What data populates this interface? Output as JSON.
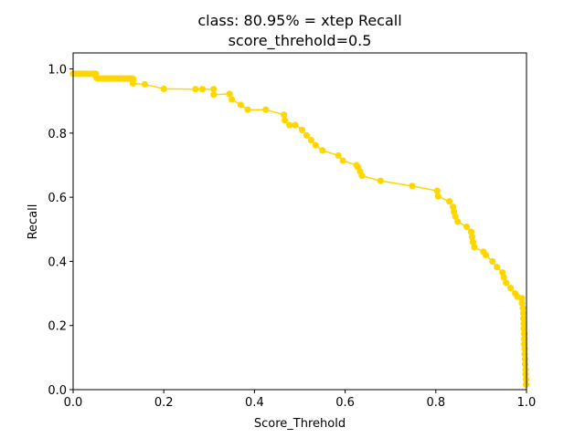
{
  "chart_data": {
    "type": "line",
    "title_line1": "class: 80.95% = xtep Recall",
    "title_line2": "score_threhold=0.5",
    "xlabel": "Score_Threhold",
    "ylabel": "Recall",
    "xlim": [
      0.0,
      1.0
    ],
    "ylim": [
      0.0,
      1.05
    ],
    "x_ticks": [
      "0.0",
      "0.2",
      "0.4",
      "0.6",
      "0.8",
      "1.0"
    ],
    "y_ticks": [
      "0.0",
      "0.2",
      "0.4",
      "0.6",
      "0.8",
      "1.0"
    ],
    "grid": false,
    "series": [
      {
        "color": "#FFD700",
        "marker": "circle",
        "points": [
          [
            0.0,
            0.985
          ],
          [
            0.005,
            0.985
          ],
          [
            0.01,
            0.985
          ],
          [
            0.015,
            0.985
          ],
          [
            0.02,
            0.985
          ],
          [
            0.025,
            0.985
          ],
          [
            0.03,
            0.985
          ],
          [
            0.035,
            0.985
          ],
          [
            0.04,
            0.985
          ],
          [
            0.045,
            0.985
          ],
          [
            0.05,
            0.985
          ],
          [
            0.05,
            0.978
          ],
          [
            0.052,
            0.972
          ],
          [
            0.056,
            0.97
          ],
          [
            0.06,
            0.97
          ],
          [
            0.065,
            0.97
          ],
          [
            0.07,
            0.97
          ],
          [
            0.075,
            0.97
          ],
          [
            0.08,
            0.97
          ],
          [
            0.085,
            0.97
          ],
          [
            0.09,
            0.97
          ],
          [
            0.095,
            0.97
          ],
          [
            0.1,
            0.97
          ],
          [
            0.105,
            0.97
          ],
          [
            0.11,
            0.97
          ],
          [
            0.115,
            0.97
          ],
          [
            0.12,
            0.97
          ],
          [
            0.125,
            0.97
          ],
          [
            0.13,
            0.97
          ],
          [
            0.133,
            0.968
          ],
          [
            0.132,
            0.955
          ],
          [
            0.158,
            0.952
          ],
          [
            0.2,
            0.938
          ],
          [
            0.27,
            0.937
          ],
          [
            0.285,
            0.937
          ],
          [
            0.31,
            0.937
          ],
          [
            0.31,
            0.92
          ],
          [
            0.345,
            0.922
          ],
          [
            0.35,
            0.905
          ],
          [
            0.37,
            0.888
          ],
          [
            0.385,
            0.873
          ],
          [
            0.425,
            0.873
          ],
          [
            0.465,
            0.857
          ],
          [
            0.467,
            0.84
          ],
          [
            0.477,
            0.825
          ],
          [
            0.49,
            0.825
          ],
          [
            0.505,
            0.81
          ],
          [
            0.515,
            0.793
          ],
          [
            0.525,
            0.778
          ],
          [
            0.535,
            0.762
          ],
          [
            0.55,
            0.746
          ],
          [
            0.585,
            0.73
          ],
          [
            0.595,
            0.714
          ],
          [
            0.625,
            0.7
          ],
          [
            0.628,
            0.694
          ],
          [
            0.633,
            0.68
          ],
          [
            0.637,
            0.667
          ],
          [
            0.678,
            0.651
          ],
          [
            0.748,
            0.635
          ],
          [
            0.803,
            0.62
          ],
          [
            0.805,
            0.603
          ],
          [
            0.83,
            0.587
          ],
          [
            0.838,
            0.57
          ],
          [
            0.84,
            0.555
          ],
          [
            0.843,
            0.54
          ],
          [
            0.848,
            0.524
          ],
          [
            0.868,
            0.508
          ],
          [
            0.878,
            0.492
          ],
          [
            0.88,
            0.476
          ],
          [
            0.882,
            0.46
          ],
          [
            0.885,
            0.444
          ],
          [
            0.905,
            0.43
          ],
          [
            0.91,
            0.42
          ],
          [
            0.925,
            0.4
          ],
          [
            0.935,
            0.382
          ],
          [
            0.947,
            0.365
          ],
          [
            0.95,
            0.35
          ],
          [
            0.955,
            0.333
          ],
          [
            0.965,
            0.317
          ],
          [
            0.975,
            0.3
          ],
          [
            0.98,
            0.29
          ],
          [
            0.99,
            0.285
          ],
          [
            0.99,
            0.27
          ],
          [
            0.992,
            0.254
          ],
          [
            0.993,
            0.238
          ],
          [
            0.993,
            0.222
          ],
          [
            0.994,
            0.206
          ],
          [
            0.994,
            0.19
          ],
          [
            0.995,
            0.174
          ],
          [
            0.995,
            0.158
          ],
          [
            0.995,
            0.142
          ],
          [
            0.996,
            0.127
          ],
          [
            0.996,
            0.111
          ],
          [
            0.997,
            0.095
          ],
          [
            0.997,
            0.079
          ],
          [
            0.998,
            0.063
          ],
          [
            0.998,
            0.048
          ],
          [
            0.999,
            0.032
          ],
          [
            0.999,
            0.016
          ]
        ]
      }
    ]
  }
}
